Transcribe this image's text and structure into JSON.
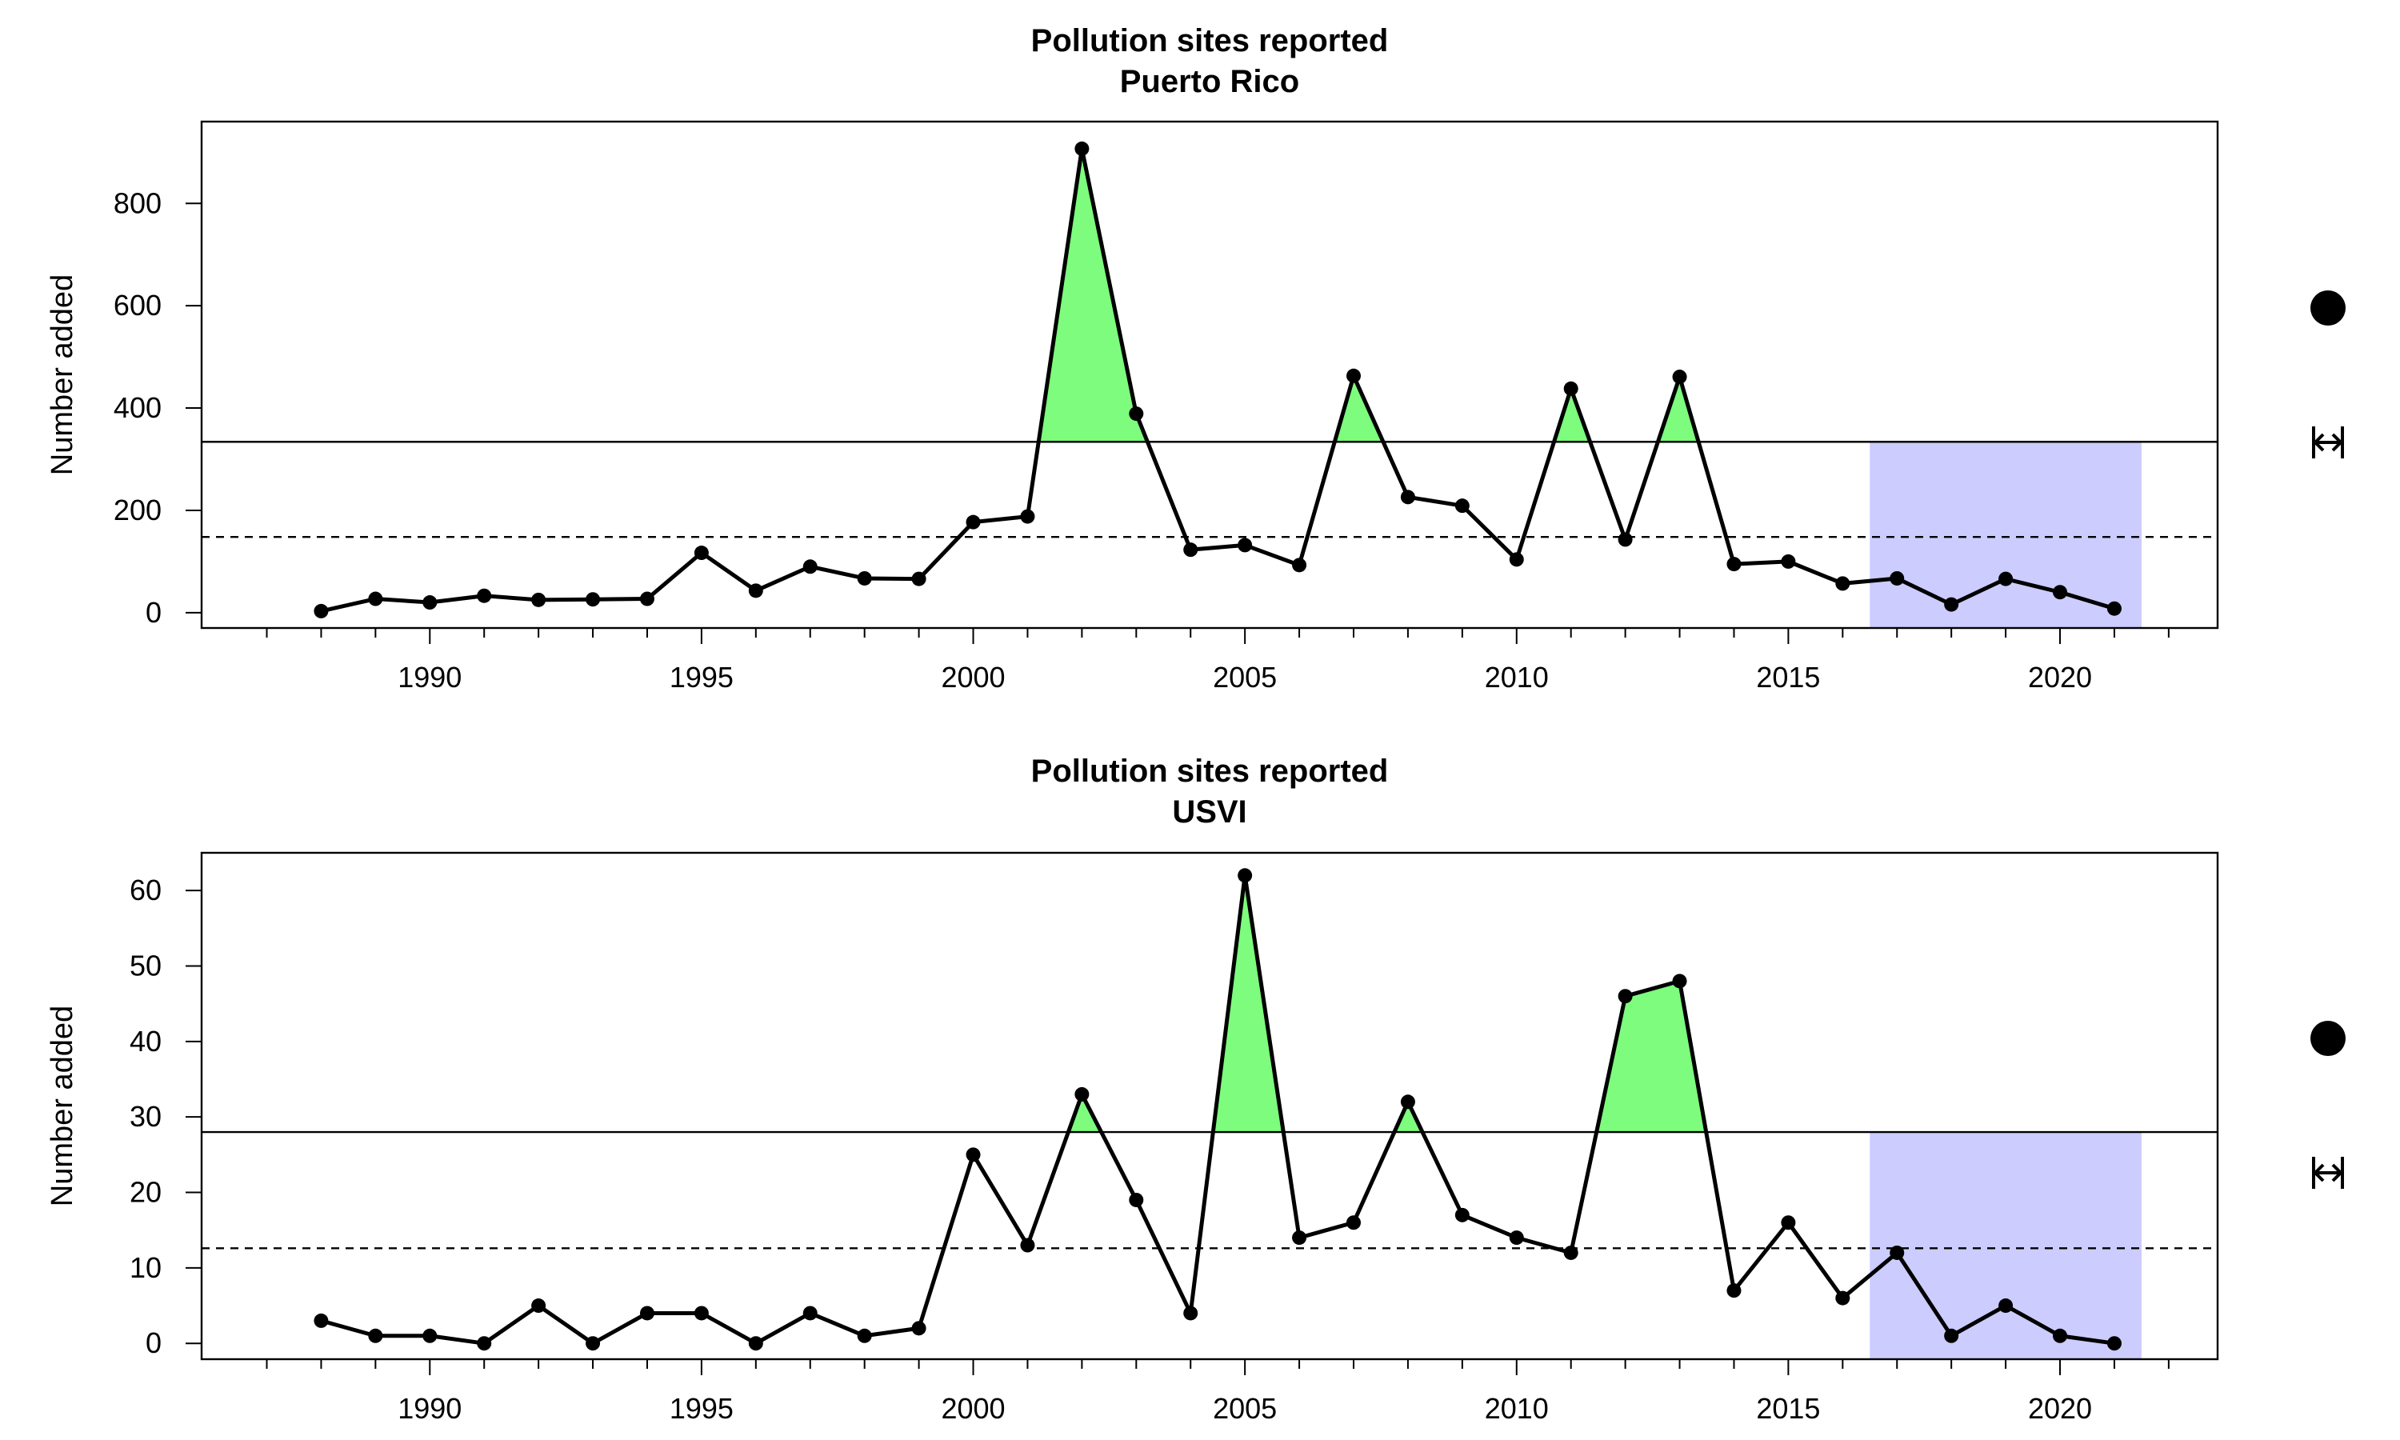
{
  "chart_data": [
    {
      "type": "line",
      "title": "Pollution sites reported",
      "subtitle": "Puerto Rico",
      "xlabel": "",
      "ylabel": "Number added",
      "xlim": [
        1985.8,
        2022.9
      ],
      "ylim": [
        -30,
        960
      ],
      "x_ticks": [
        1990,
        1995,
        2000,
        2005,
        2010,
        2015,
        2020
      ],
      "y_ticks": [
        0,
        200,
        400,
        600,
        800
      ],
      "x": [
        1988,
        1989,
        1990,
        1991,
        1992,
        1993,
        1994,
        1995,
        1996,
        1997,
        1998,
        1999,
        2000,
        2001,
        2002,
        2003,
        2004,
        2005,
        2006,
        2007,
        2008,
        2009,
        2010,
        2011,
        2012,
        2013,
        2014,
        2015,
        2016,
        2017,
        2018,
        2019,
        2020,
        2021
      ],
      "values": [
        3,
        27,
        20,
        33,
        25,
        26,
        27,
        117,
        43,
        90,
        67,
        66,
        177,
        188,
        907,
        389,
        123,
        132,
        93,
        463,
        226,
        209,
        104,
        438,
        143,
        461,
        95,
        100,
        57,
        67,
        16,
        66,
        40,
        8
      ],
      "mean": 148,
      "upper_line": 334,
      "shade_x": [
        2016.5,
        2021.5
      ],
      "grid": false,
      "legend_symbols": [
        "filled-circle-symbol",
        "left-right-arrow-symbol"
      ],
      "colors": {
        "line": "#000000",
        "above_fill": "#7dfc7d",
        "recent_band": "#ccccff"
      }
    },
    {
      "type": "line",
      "title": "Pollution sites reported",
      "subtitle": "USVI",
      "xlabel": "",
      "ylabel": "Number added",
      "xlim": [
        1985.8,
        2022.9
      ],
      "ylim": [
        -2.1,
        65
      ],
      "x_ticks": [
        1990,
        1995,
        2000,
        2005,
        2010,
        2015,
        2020
      ],
      "y_ticks": [
        0,
        10,
        20,
        30,
        40,
        50,
        60
      ],
      "x": [
        1988,
        1989,
        1990,
        1991,
        1992,
        1993,
        1994,
        1995,
        1996,
        1997,
        1998,
        1999,
        2000,
        2001,
        2002,
        2003,
        2004,
        2005,
        2006,
        2007,
        2008,
        2009,
        2010,
        2011,
        2012,
        2013,
        2014,
        2015,
        2016,
        2017,
        2018,
        2019,
        2020,
        2021
      ],
      "values": [
        3,
        1,
        1,
        0,
        5,
        0,
        4,
        4,
        0,
        4,
        1,
        2,
        25,
        13,
        33,
        19,
        4,
        62,
        14,
        16,
        32,
        17,
        14,
        12,
        46,
        48,
        7,
        16,
        6,
        12,
        1,
        5,
        1,
        0
      ],
      "mean": 12.6,
      "upper_line": 28,
      "shade_x": [
        2016.5,
        2021.5
      ],
      "grid": false,
      "legend_symbols": [
        "filled-circle-symbol",
        "left-right-arrow-symbol"
      ],
      "colors": {
        "line": "#000000",
        "above_fill": "#7dfc7d",
        "recent_band": "#ccccff"
      }
    }
  ]
}
